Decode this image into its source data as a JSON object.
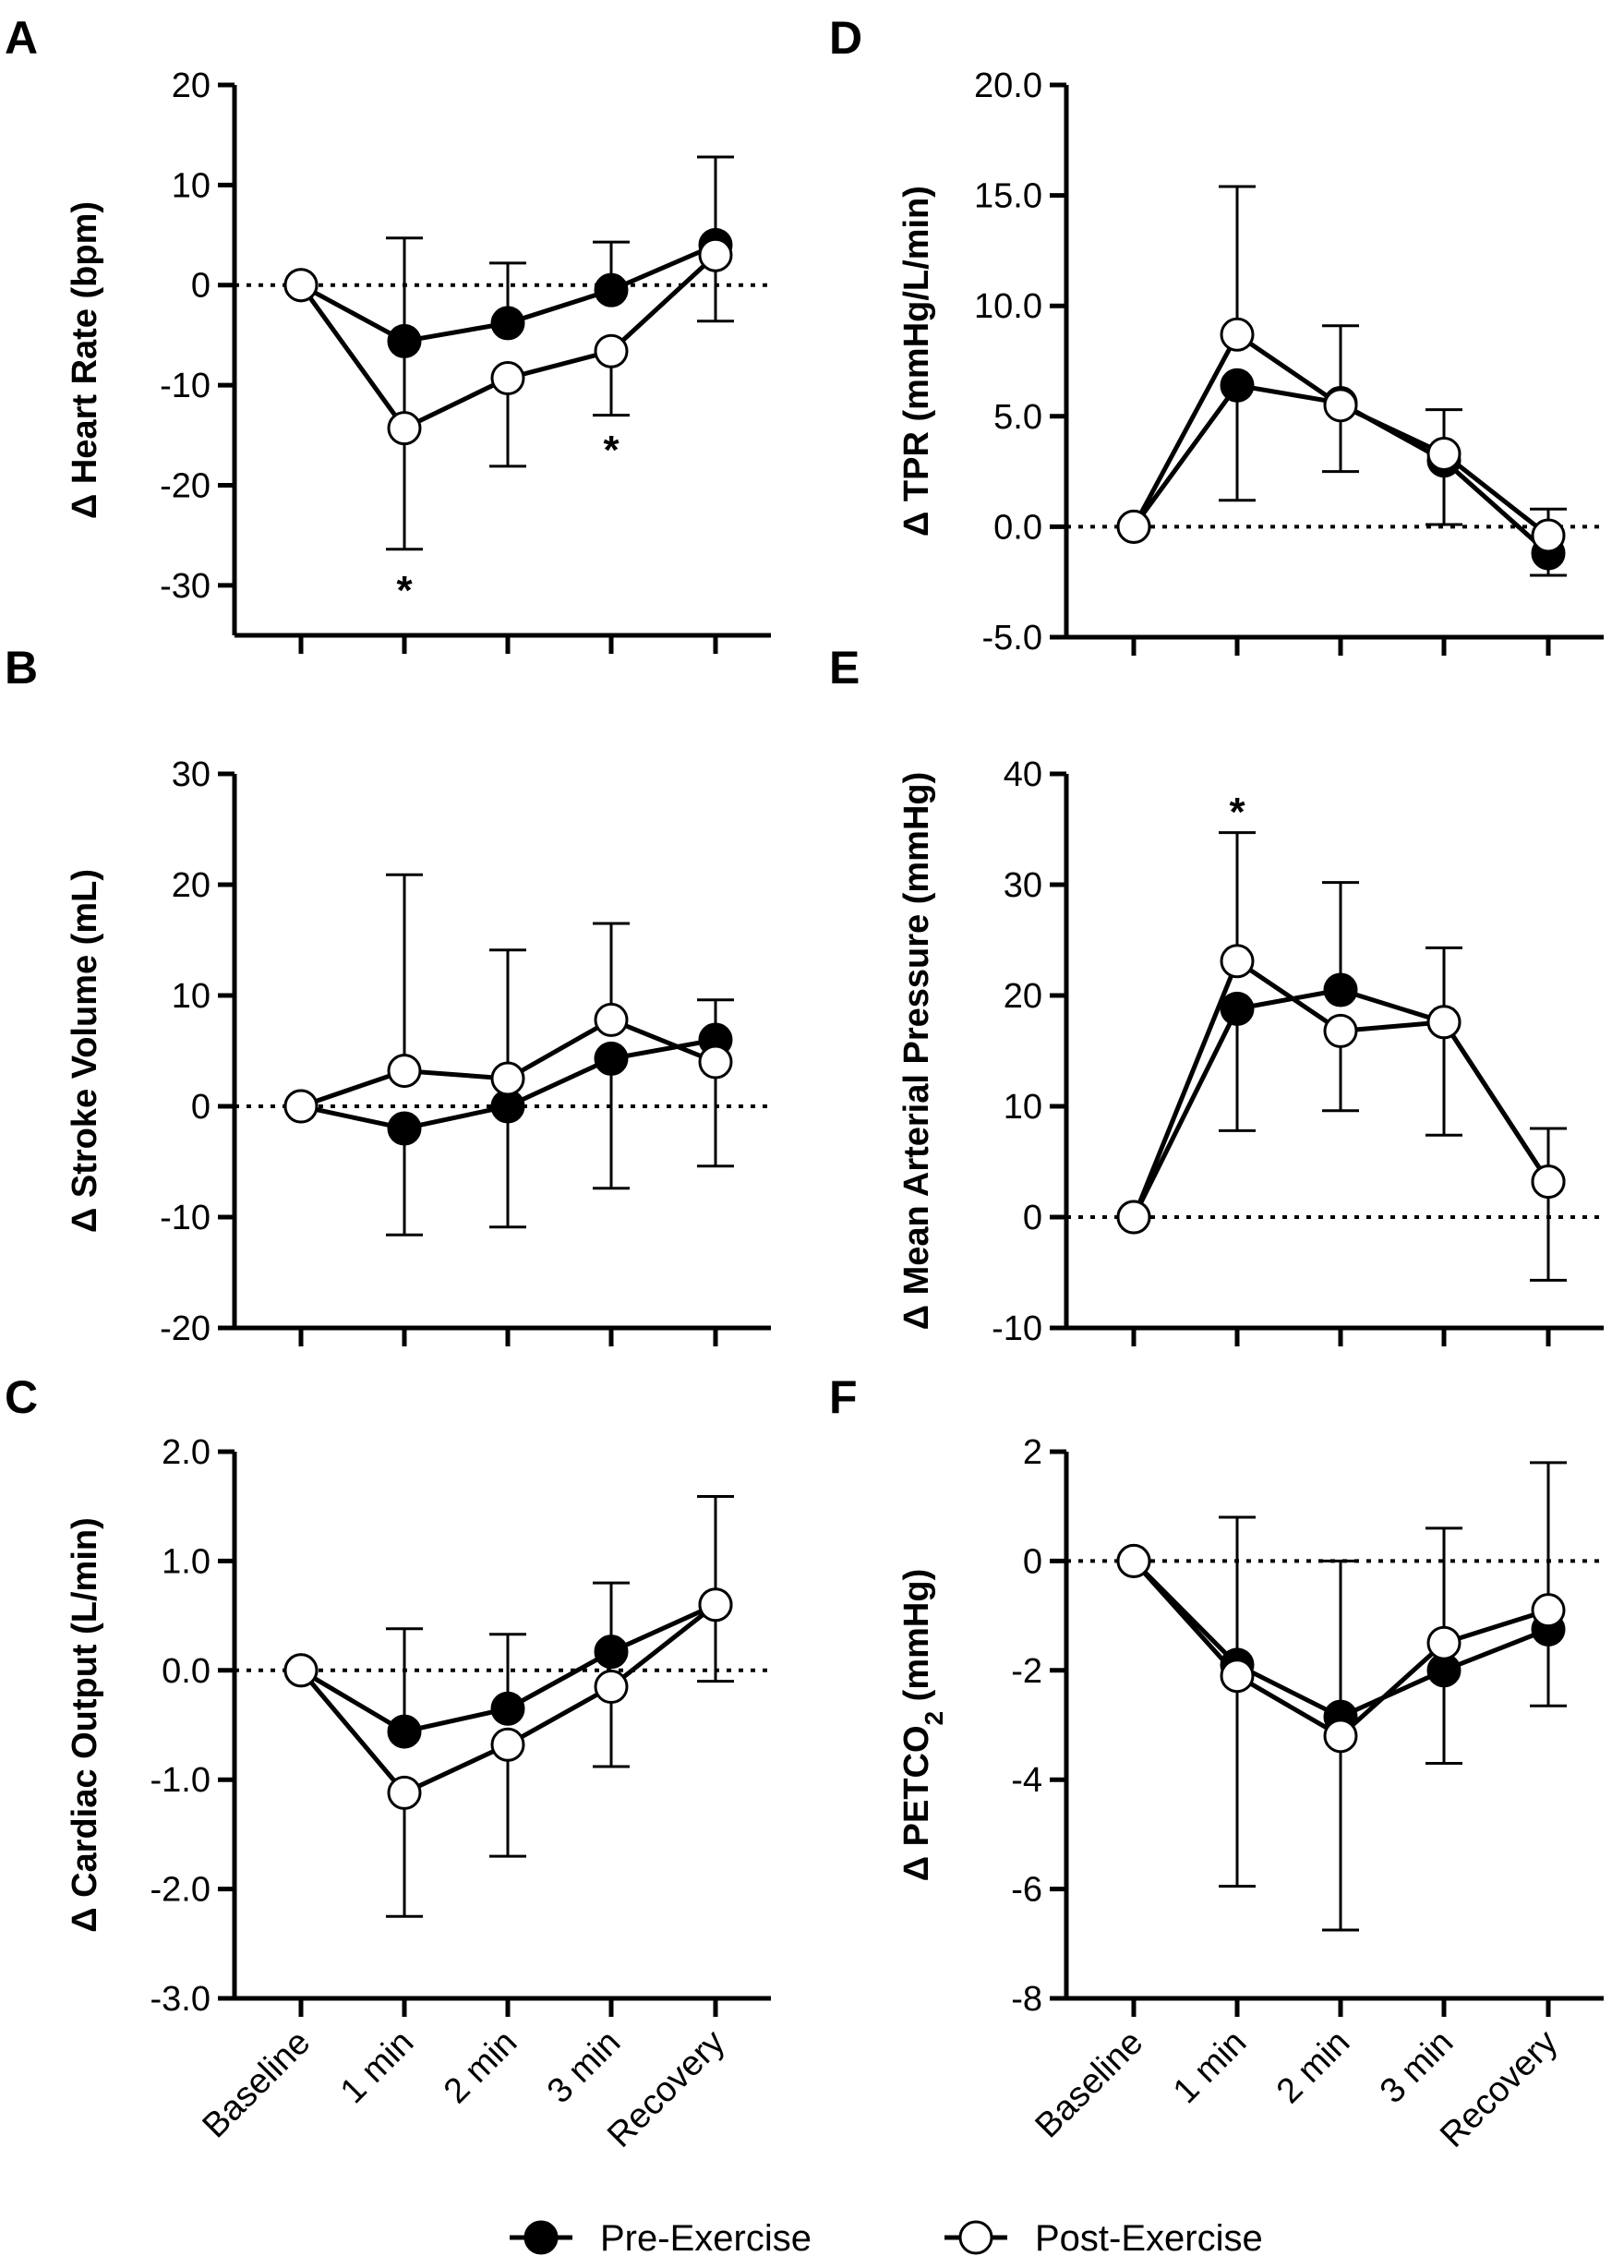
{
  "chart_data": [
    {
      "panel": "A",
      "type": "line",
      "ylabel_prefix": "Δ",
      "ylabel": "Heart Rate (bpm)",
      "ylim": [
        -35,
        20
      ],
      "yticks": [
        20,
        10,
        0,
        -10,
        -20,
        -30
      ],
      "ytick_labels": [
        "20",
        "10",
        "0",
        "-10",
        "-20",
        "-30"
      ],
      "categories": [
        "Baseline",
        "1 min",
        "2 min",
        "3 min",
        "Recovery"
      ],
      "zero_line": true,
      "series": [
        {
          "name": "Pre-Exercise",
          "values": [
            0,
            -5.6,
            -3.8,
            -0.5,
            4.0
          ],
          "err_up": [
            null,
            null,
            6.0,
            4.8,
            8.8
          ],
          "err_down": [
            null,
            null,
            null,
            null,
            null
          ]
        },
        {
          "name": "Post-Exercise",
          "values": [
            0,
            -14.3,
            -9.3,
            -6.6,
            3.0
          ],
          "err_up": [
            null,
            19.0,
            null,
            null,
            null
          ],
          "err_down": [
            null,
            12.1,
            8.8,
            6.4,
            6.6
          ]
        }
      ],
      "significance": [
        {
          "label": "*",
          "category": "1 min",
          "y": -30
        },
        {
          "label": "*",
          "category": "3 min",
          "y": -16
        }
      ]
    },
    {
      "panel": "B",
      "type": "line",
      "ylabel_prefix": "Δ",
      "ylabel": "Stroke Volume (mL)",
      "ylim": [
        -20,
        30
      ],
      "yticks": [
        30,
        20,
        10,
        0,
        -10,
        -20
      ],
      "ytick_labels": [
        "30",
        "20",
        "10",
        "0",
        "-10",
        "-20"
      ],
      "categories": [
        "Baseline",
        "1 min",
        "2 min",
        "3 min",
        "Recovery"
      ],
      "zero_line": true,
      "series": [
        {
          "name": "Pre-Exercise",
          "values": [
            0,
            -2.0,
            0,
            4.3,
            6.0
          ],
          "err_up": [
            null,
            null,
            null,
            null,
            3.6
          ],
          "err_down": [
            null,
            9.6,
            10.9,
            11.7,
            null
          ]
        },
        {
          "name": "Post-Exercise",
          "values": [
            0,
            3.2,
            2.5,
            7.8,
            4.0
          ],
          "err_up": [
            null,
            17.7,
            11.6,
            8.7,
            null
          ],
          "err_down": [
            null,
            null,
            null,
            null,
            9.4
          ]
        }
      ],
      "significance": []
    },
    {
      "panel": "C",
      "type": "line",
      "ylabel_prefix": "Δ",
      "ylabel": "Cardiac Output (L/min)",
      "ylim": [
        -3.0,
        2.0
      ],
      "yticks": [
        2.0,
        1.0,
        0.0,
        -1.0,
        -2.0,
        -3.0
      ],
      "ytick_labels": [
        "2.0",
        "1.0",
        "0.0",
        "-1.0",
        "-2.0",
        "-3.0"
      ],
      "categories": [
        "Baseline",
        "1 min",
        "2 min",
        "3 min",
        "Recovery"
      ],
      "zero_line": true,
      "series": [
        {
          "name": "Pre-Exercise",
          "values": [
            0,
            -0.56,
            -0.35,
            0.17,
            0.6
          ],
          "err_up": [
            null,
            0.94,
            0.68,
            0.63,
            0.99
          ],
          "err_down": [
            null,
            null,
            null,
            null,
            null
          ]
        },
        {
          "name": "Post-Exercise",
          "values": [
            0,
            -1.12,
            -0.68,
            -0.15,
            0.6
          ],
          "err_up": [
            null,
            null,
            null,
            null,
            null
          ],
          "err_down": [
            null,
            1.13,
            1.02,
            0.73,
            0.7
          ]
        }
      ],
      "significance": []
    },
    {
      "panel": "D",
      "type": "line",
      "ylabel_prefix": "Δ",
      "ylabel": "TPR (mmHg/L/min)",
      "ylim": [
        -5.0,
        20.0
      ],
      "yticks": [
        20.0,
        15.0,
        10.0,
        5.0,
        0.0,
        -5.0
      ],
      "ytick_labels": [
        "20.0",
        "15.0",
        "10.0",
        "5.0",
        "0.0",
        "-5.0"
      ],
      "categories": [
        "Baseline",
        "1 min",
        "2 min",
        "3 min",
        "Recovery"
      ],
      "zero_line": true,
      "series": [
        {
          "name": "Pre-Exercise",
          "values": [
            0,
            6.4,
            5.6,
            3.0,
            -1.2
          ],
          "err_up": [
            null,
            null,
            null,
            null,
            null
          ],
          "err_down": [
            null,
            5.2,
            3.1,
            2.9,
            1.0
          ]
        },
        {
          "name": "Post-Exercise",
          "values": [
            0,
            8.7,
            5.5,
            3.3,
            -0.4
          ],
          "err_up": [
            null,
            6.7,
            3.6,
            2.0,
            1.2
          ],
          "err_down": [
            null,
            null,
            null,
            null,
            null
          ]
        }
      ],
      "significance": []
    },
    {
      "panel": "E",
      "type": "line",
      "ylabel_prefix": "Δ",
      "ylabel": "Mean Arterial Pressure (mmHg)",
      "ylim": [
        -10,
        40
      ],
      "yticks": [
        40,
        30,
        20,
        10,
        0,
        -10
      ],
      "ytick_labels": [
        "40",
        "30",
        "20",
        "10",
        "0",
        "-10"
      ],
      "categories": [
        "Baseline",
        "1 min",
        "2 min",
        "3 min",
        "Recovery"
      ],
      "zero_line": true,
      "series": [
        {
          "name": "Pre-Exercise",
          "values": [
            0,
            18.8,
            20.5,
            17.6,
            3.2
          ],
          "err_up": [
            null,
            null,
            9.7,
            6.7,
            null
          ],
          "err_down": [
            null,
            11.0,
            null,
            null,
            null
          ]
        },
        {
          "name": "Post-Exercise",
          "values": [
            0,
            23.1,
            16.8,
            17.6,
            3.2
          ],
          "err_up": [
            null,
            11.6,
            null,
            null,
            4.8
          ],
          "err_down": [
            null,
            null,
            7.2,
            10.2,
            8.9
          ]
        }
      ],
      "significance": [
        {
          "label": "*",
          "category": "1 min",
          "y": 37
        }
      ]
    },
    {
      "panel": "F",
      "type": "line",
      "ylabel_prefix": "Δ",
      "ylabel": "PETCO",
      "ylabel_sub": "2",
      "ylabel_suffix": "(mmHg)",
      "ylim": [
        -8,
        2
      ],
      "yticks": [
        2,
        0,
        -2,
        -4,
        -6,
        -8
      ],
      "ytick_labels": [
        "2",
        "0",
        "-2",
        "-4",
        "-6",
        "-8"
      ],
      "categories": [
        "Baseline",
        "1 min",
        "2 min",
        "3 min",
        "Recovery"
      ],
      "zero_line": true,
      "series": [
        {
          "name": "Pre-Exercise",
          "values": [
            0,
            -1.9,
            -2.85,
            -2.0,
            -1.25
          ],
          "err_up": [
            null,
            2.7,
            2.85,
            null,
            null
          ],
          "err_down": [
            null,
            null,
            null,
            1.7,
            1.4
          ]
        },
        {
          "name": "Post-Exercise",
          "values": [
            0,
            -2.1,
            -3.2,
            -1.5,
            -0.9
          ],
          "err_up": [
            null,
            null,
            null,
            2.1,
            2.7
          ],
          "err_down": [
            null,
            3.85,
            3.55,
            null,
            null
          ]
        }
      ],
      "significance": []
    }
  ],
  "legend": {
    "pre_label": "Pre-Exercise",
    "post_label": "Post-Exercise"
  },
  "colors": {
    "pre_fill": "#000000",
    "post_fill": "#ffffff",
    "stroke": "#000000"
  }
}
